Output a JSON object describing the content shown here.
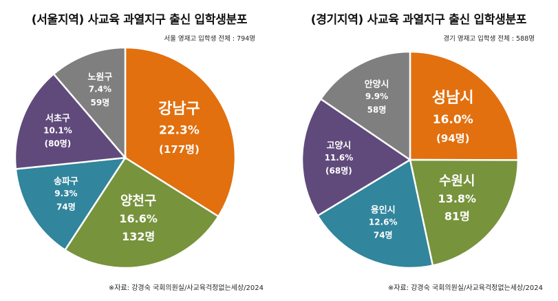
{
  "chart_data": [
    {
      "type": "pie",
      "title": "(서울지역) 사교육 과열지구 출신 입학생분포",
      "subtitle": "서울 영재고 입학생 전체 : 794명",
      "source": "※자료: 강경숙 국회의원실/사교육걱정없는세상/2024",
      "slices": [
        {
          "label": "강남구",
          "percent_text": "22.3%",
          "count_text": "(177명)",
          "value": 22.3,
          "color": "#E2700F"
        },
        {
          "label": "양천구",
          "percent_text": "16.6%",
          "count_text": "132명",
          "value": 16.6,
          "color": "#77933C"
        },
        {
          "label": "송파구",
          "percent_text": "9.3%",
          "count_text": "74명",
          "value": 9.3,
          "color": "#31859C"
        },
        {
          "label": "서초구",
          "percent_text": "10.1%",
          "count_text": "(80명)",
          "value": 10.1,
          "color": "#604A7B"
        },
        {
          "label": "노원구",
          "percent_text": "7.4%",
          "count_text": "59명",
          "value": 7.4,
          "color": "#7F7F7F"
        }
      ]
    },
    {
      "type": "pie",
      "title": "(경기지역) 사교육 과열지구 출신 입학생분포",
      "subtitle": "경기 영재고 입학생 전체 : 588명",
      "source": "※자료: 강경숙 국회의원실/사교육걱정없는세상/2024",
      "slices": [
        {
          "label": "성남시",
          "percent_text": "16.0%",
          "count_text": "(94명)",
          "value": 16.0,
          "color": "#E2700F"
        },
        {
          "label": "수원시",
          "percent_text": "13.8%",
          "count_text": "81명",
          "value": 13.8,
          "color": "#77933C"
        },
        {
          "label": "용인시",
          "percent_text": "12.6%",
          "count_text": "74명",
          "value": 12.6,
          "color": "#31859C"
        },
        {
          "label": "고양시",
          "percent_text": "11.6%",
          "count_text": "(68명)",
          "value": 11.6,
          "color": "#604A7B"
        },
        {
          "label": "안양시",
          "percent_text": "9.9%",
          "count_text": "58명",
          "value": 9.9,
          "color": "#7F7F7F"
        }
      ]
    }
  ]
}
